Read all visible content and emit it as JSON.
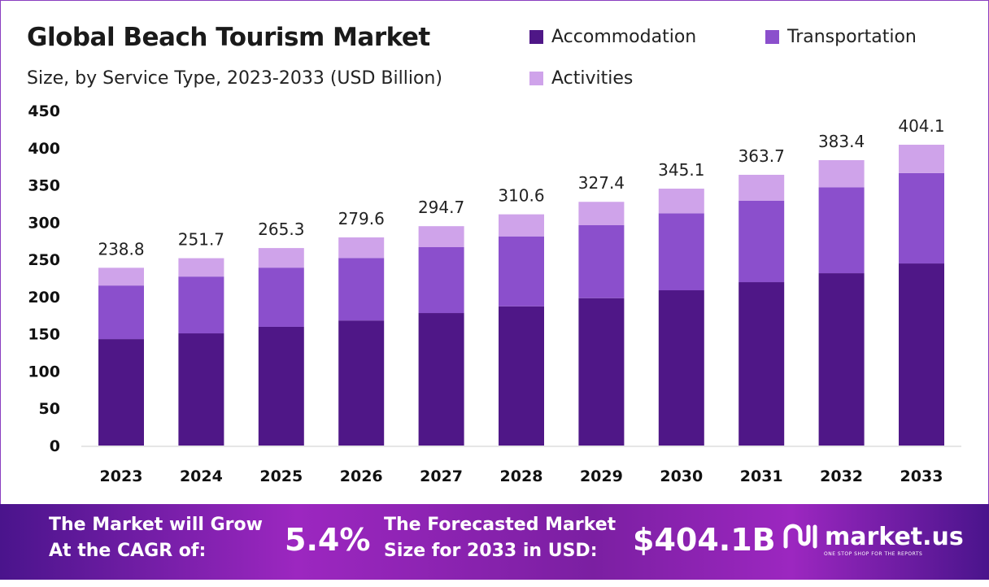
{
  "chart_data": {
    "type": "bar",
    "stacked": true,
    "title": "Global Beach Tourism Market",
    "subtitle": "Size, by Service Type, 2023-2033 (USD Billion)",
    "categories": [
      "2023",
      "2024",
      "2025",
      "2026",
      "2027",
      "2028",
      "2029",
      "2030",
      "2031",
      "2032",
      "2033"
    ],
    "series": [
      {
        "name": "Accommodation",
        "color": "#4f1787",
        "values": [
          143,
          150.7,
          159.5,
          168,
          178,
          187,
          198,
          208.6,
          219.5,
          231.5,
          244.6
        ]
      },
      {
        "name": "Transportation",
        "color": "#8b4fcc",
        "values": [
          72,
          76.3,
          79.5,
          84,
          88.5,
          94,
          98,
          103.4,
          109.5,
          115.5,
          121.4
        ]
      },
      {
        "name": "Activities",
        "color": "#cfa3ea",
        "values": [
          23.8,
          24.7,
          26.3,
          27.6,
          28.2,
          29.6,
          31.4,
          33.1,
          34.7,
          36.4,
          38.1
        ]
      }
    ],
    "totals": [
      "238.8",
      "251.7",
      "265.3",
      "279.6",
      "294.7",
      "310.6",
      "327.4",
      "345.1",
      "363.7",
      "383.4",
      "404.1"
    ],
    "ylim": [
      0,
      450
    ],
    "yticks": [
      "0",
      "50",
      "100",
      "150",
      "200",
      "250",
      "300",
      "350",
      "400",
      "450"
    ],
    "grid": false,
    "legend": "top-right"
  },
  "banner": {
    "cagr_label_1": "The Market will Grow",
    "cagr_label_2": "At the CAGR of:",
    "cagr_value": "5.4%",
    "forecast_label_1": "The Forecasted Market",
    "forecast_label_2": "Size for 2033 in USD:",
    "forecast_value": "$404.1B",
    "brand": "market.us",
    "tagline": "ONE STOP SHOP FOR THE REPORTS"
  }
}
